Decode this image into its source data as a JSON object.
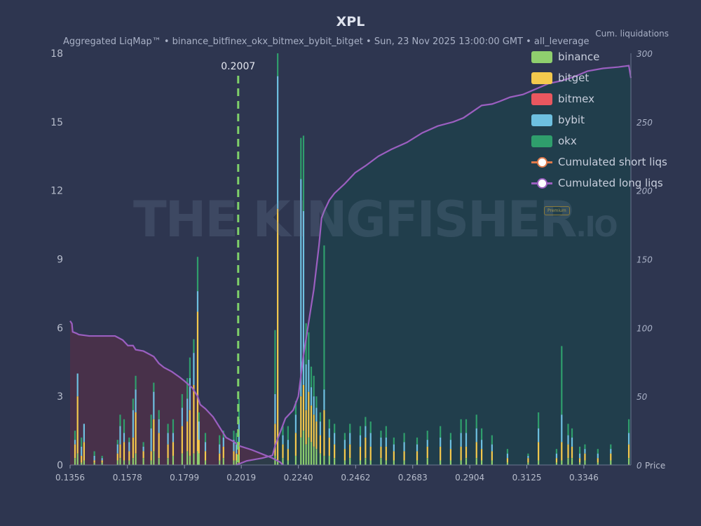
{
  "title": "XPL",
  "subtitle": "Aggregated LiqMap™  •  binance_bitfinex_okx_bitmex_bybit_bitget  •  Sun, 23 Nov 2025 13:00:00 GMT  •  all_leverage",
  "right_axis_title": "Cum. liquidations",
  "price_axis_label": "Price",
  "current_price_label": "0.2007",
  "watermark": {
    "main": "THE KINGFISHER",
    "suffix": ".IO",
    "badge": "Premium"
  },
  "legend": [
    {
      "label": "binance",
      "color": "#8fcf6e",
      "kind": "bar"
    },
    {
      "label": "bitget",
      "color": "#f4c94d",
      "kind": "bar"
    },
    {
      "label": "bitmex",
      "color": "#e8575f",
      "kind": "bar"
    },
    {
      "label": "bybit",
      "color": "#6ec0e0",
      "kind": "bar"
    },
    {
      "label": "okx",
      "color": "#2f9e6c",
      "kind": "bar"
    },
    {
      "label": "Cumulated short liqs",
      "color": "#e07a4a",
      "kind": "line"
    },
    {
      "label": "Cumulated long liqs",
      "color": "#9b5fc0",
      "kind": "line"
    }
  ],
  "chart_data": {
    "type": "bar",
    "x_ticks": [
      "0.1356",
      "0.1578",
      "0.1799",
      "0.2019",
      "0.2240",
      "0.2462",
      "0.2683",
      "0.2904",
      "0.3125",
      "0.3346"
    ],
    "x_range": [
      0.1356,
      0.3528
    ],
    "y_ticks": [
      "0",
      "3",
      "6",
      "9",
      "12",
      "15",
      "18"
    ],
    "ylim": [
      0,
      18
    ],
    "y2_ticks": [
      "0",
      "50",
      "100",
      "150",
      "200",
      "250",
      "300"
    ],
    "y2lim": [
      0,
      300
    ],
    "current_price": 0.2007,
    "bars": [
      {
        "x": 0.1375,
        "h": [
          0.3,
          0.6,
          0,
          0.2,
          0.4
        ]
      },
      {
        "x": 0.1385,
        "h": [
          0.5,
          2.5,
          0,
          1.0,
          0
        ]
      },
      {
        "x": 0.14,
        "h": [
          0.1,
          0.3,
          0,
          0.4,
          0.4
        ]
      },
      {
        "x": 0.141,
        "h": [
          0.2,
          0.8,
          0,
          0.8,
          0
        ]
      },
      {
        "x": 0.145,
        "h": [
          0.1,
          0.1,
          0,
          0.2,
          0.2
        ]
      },
      {
        "x": 0.148,
        "h": [
          0.1,
          0.1,
          0,
          0.1,
          0.1
        ]
      },
      {
        "x": 0.154,
        "h": [
          0.2,
          0.3,
          0,
          0.4,
          0.2
        ]
      },
      {
        "x": 0.155,
        "h": [
          0.3,
          0.6,
          0,
          0.8,
          0.5
        ]
      },
      {
        "x": 0.1565,
        "h": [
          0.2,
          0.8,
          0,
          0.4,
          0.6
        ]
      },
      {
        "x": 0.1585,
        "h": [
          0.2,
          0.4,
          0,
          0.4,
          0.2
        ]
      },
      {
        "x": 0.16,
        "h": [
          0.3,
          0.9,
          0,
          1.2,
          0.5
        ]
      },
      {
        "x": 0.161,
        "h": [
          0.5,
          1.8,
          0,
          1.0,
          0.6
        ]
      },
      {
        "x": 0.164,
        "h": [
          0.3,
          0.3,
          0,
          0.2,
          0.2
        ]
      },
      {
        "x": 0.167,
        "h": [
          0.2,
          0.4,
          0,
          1.0,
          0.6
        ]
      },
      {
        "x": 0.168,
        "h": [
          0.6,
          1.4,
          0,
          1.2,
          0.4
        ]
      },
      {
        "x": 0.17,
        "h": [
          0.3,
          1.1,
          0,
          0.6,
          0.4
        ]
      },
      {
        "x": 0.1735,
        "h": [
          0.3,
          0.6,
          0,
          0.5,
          0.4
        ]
      },
      {
        "x": 0.1755,
        "h": [
          0.4,
          0.6,
          0,
          0.4,
          0.6
        ]
      },
      {
        "x": 0.179,
        "h": [
          0.5,
          1.2,
          0,
          0.8,
          0.6
        ]
      },
      {
        "x": 0.181,
        "h": [
          0.6,
          1.3,
          0,
          1.0,
          0.9
        ]
      },
      {
        "x": 0.182,
        "h": [
          0.4,
          2.0,
          0,
          1.4,
          0.9
        ]
      },
      {
        "x": 0.1835,
        "h": [
          0.5,
          3.0,
          0,
          1.4,
          0.6
        ]
      },
      {
        "x": 0.185,
        "h": [
          0.6,
          6.1,
          0,
          0.9,
          1.5
        ]
      },
      {
        "x": 0.1855,
        "h": [
          0.5,
          0.6,
          0,
          0.8,
          0.4
        ]
      },
      {
        "x": 0.188,
        "h": [
          0.2,
          0.4,
          0,
          0.4,
          0.4
        ]
      },
      {
        "x": 0.1935,
        "h": [
          0.2,
          0.3,
          0,
          0.4,
          0.4
        ]
      },
      {
        "x": 0.195,
        "h": [
          0.3,
          0.5,
          0,
          0.4,
          0.3
        ]
      },
      {
        "x": 0.199,
        "h": [
          0.2,
          0.4,
          0,
          0.5,
          0.4
        ]
      },
      {
        "x": 0.2,
        "h": [
          0.2,
          0.3,
          0,
          0.4,
          0.5
        ]
      },
      {
        "x": 0.201,
        "h": [
          0.1,
          0.9,
          0,
          1.0,
          0.9
        ]
      },
      {
        "x": 0.215,
        "h": [
          0.4,
          1.4,
          0,
          1.3,
          2.8
        ]
      },
      {
        "x": 0.216,
        "h": [
          0.2,
          11.0,
          0,
          5.8,
          1.0
        ]
      },
      {
        "x": 0.218,
        "h": [
          0.3,
          0.6,
          0,
          0.4,
          0.4
        ]
      },
      {
        "x": 0.22,
        "h": [
          0.2,
          0.5,
          0,
          0.4,
          0.6
        ]
      },
      {
        "x": 0.223,
        "h": [
          0.4,
          1.0,
          0,
          0.8,
          0.6
        ]
      },
      {
        "x": 0.225,
        "h": [
          1.2,
          1.8,
          0,
          9.5,
          1.8
        ]
      },
      {
        "x": 0.226,
        "h": [
          1.5,
          2.0,
          0,
          7.6,
          3.3
        ]
      },
      {
        "x": 0.227,
        "h": [
          0.9,
          1.5,
          0,
          2.0,
          1.8
        ]
      },
      {
        "x": 0.228,
        "h": [
          1.2,
          2.0,
          0,
          1.4,
          1.2
        ]
      },
      {
        "x": 0.229,
        "h": [
          1.0,
          1.6,
          0,
          0.8,
          0.9
        ]
      },
      {
        "x": 0.23,
        "h": [
          0.8,
          1.4,
          0,
          0.8,
          0.9
        ]
      },
      {
        "x": 0.231,
        "h": [
          0.7,
          1.2,
          0,
          0.6,
          0.5
        ]
      },
      {
        "x": 0.2325,
        "h": [
          0.5,
          0.8,
          0,
          0.6,
          0.4
        ]
      },
      {
        "x": 0.234,
        "h": [
          0.4,
          2.0,
          0,
          0.9,
          6.3
        ]
      },
      {
        "x": 0.236,
        "h": [
          0.4,
          0.8,
          0,
          0.4,
          0.4
        ]
      },
      {
        "x": 0.238,
        "h": [
          0.3,
          0.6,
          0,
          0.5,
          0.4
        ]
      },
      {
        "x": 0.242,
        "h": [
          0.2,
          0.5,
          0,
          0.4,
          0.3
        ]
      },
      {
        "x": 0.244,
        "h": [
          0.3,
          0.6,
          0,
          0.5,
          0.4
        ]
      },
      {
        "x": 0.248,
        "h": [
          0.2,
          0.6,
          0,
          0.5,
          0.4
        ]
      },
      {
        "x": 0.25,
        "h": [
          0.3,
          0.9,
          0,
          0.5,
          0.4
        ]
      },
      {
        "x": 0.252,
        "h": [
          0.2,
          0.6,
          0,
          0.6,
          0.5
        ]
      },
      {
        "x": 0.256,
        "h": [
          0.3,
          0.5,
          0,
          0.4,
          0.3
        ]
      },
      {
        "x": 0.258,
        "h": [
          0.2,
          0.6,
          0,
          0.4,
          0.5
        ]
      },
      {
        "x": 0.261,
        "h": [
          0.2,
          0.4,
          0,
          0.3,
          0.3
        ]
      },
      {
        "x": 0.265,
        "h": [
          0.2,
          0.4,
          0,
          0.4,
          0.4
        ]
      },
      {
        "x": 0.27,
        "h": [
          0.2,
          0.4,
          0,
          0.3,
          0.3
        ]
      },
      {
        "x": 0.274,
        "h": [
          0.3,
          0.5,
          0,
          0.3,
          0.4
        ]
      },
      {
        "x": 0.279,
        "h": [
          0.2,
          0.6,
          0,
          0.4,
          0.5
        ]
      },
      {
        "x": 0.283,
        "h": [
          0.2,
          0.5,
          0,
          0.4,
          0.3
        ]
      },
      {
        "x": 0.287,
        "h": [
          0.2,
          0.6,
          0,
          0.6,
          0.6
        ]
      },
      {
        "x": 0.289,
        "h": [
          0.3,
          0.5,
          0,
          0.6,
          0.6
        ]
      },
      {
        "x": 0.293,
        "h": [
          0.3,
          0.7,
          0,
          0.6,
          0.6
        ]
      },
      {
        "x": 0.295,
        "h": [
          0.2,
          0.5,
          0,
          0.4,
          0.5
        ]
      },
      {
        "x": 0.299,
        "h": [
          0.2,
          0.4,
          0,
          0.3,
          0.4
        ]
      },
      {
        "x": 0.305,
        "h": [
          0.1,
          0.2,
          0,
          0.2,
          0.2
        ]
      },
      {
        "x": 0.313,
        "h": [
          0.1,
          0.2,
          0,
          0.1,
          0.1
        ]
      },
      {
        "x": 0.317,
        "h": [
          0.2,
          0.8,
          0,
          0.6,
          0.7
        ]
      },
      {
        "x": 0.324,
        "h": [
          0.1,
          0.2,
          0,
          0.2,
          0.2
        ]
      },
      {
        "x": 0.326,
        "h": [
          0.2,
          0.8,
          0,
          1.2,
          3.0
        ]
      },
      {
        "x": 0.3285,
        "h": [
          0.3,
          0.6,
          0,
          0.4,
          0.5
        ]
      },
      {
        "x": 0.33,
        "h": [
          0.3,
          0.5,
          0,
          0.4,
          0.4
        ]
      },
      {
        "x": 0.333,
        "h": [
          0.1,
          0.2,
          0,
          0.2,
          0.3
        ]
      },
      {
        "x": 0.335,
        "h": [
          0.2,
          0.3,
          0,
          0.2,
          0.2
        ]
      },
      {
        "x": 0.34,
        "h": [
          0.1,
          0.2,
          0,
          0.2,
          0.2
        ]
      },
      {
        "x": 0.345,
        "h": [
          0.2,
          0.3,
          0,
          0.2,
          0.2
        ]
      },
      {
        "x": 0.352,
        "h": [
          0.3,
          0.6,
          0,
          0.5,
          0.6
        ]
      }
    ],
    "short_cum": [
      [
        0.1356,
        105
      ],
      [
        0.1363,
        103
      ],
      [
        0.1366,
        97
      ],
      [
        0.138,
        96
      ],
      [
        0.139,
        95
      ],
      [
        0.143,
        94
      ],
      [
        0.153,
        94
      ],
      [
        0.154,
        93
      ],
      [
        0.156,
        91
      ],
      [
        0.157,
        89
      ],
      [
        0.158,
        87
      ],
      [
        0.16,
        87
      ],
      [
        0.161,
        84
      ],
      [
        0.164,
        83
      ],
      [
        0.166,
        81
      ],
      [
        0.168,
        79
      ],
      [
        0.17,
        74
      ],
      [
        0.172,
        71
      ],
      [
        0.175,
        68
      ],
      [
        0.178,
        64
      ],
      [
        0.18,
        61
      ],
      [
        0.183,
        56
      ],
      [
        0.185,
        50
      ],
      [
        0.186,
        44
      ],
      [
        0.188,
        41
      ],
      [
        0.191,
        35
      ],
      [
        0.194,
        26
      ],
      [
        0.196,
        20
      ],
      [
        0.199,
        17
      ],
      [
        0.201,
        14
      ],
      [
        0.206,
        11
      ],
      [
        0.214,
        5
      ],
      [
        0.217,
        2
      ],
      [
        0.218,
        0
      ]
    ],
    "long_cum": [
      [
        0.2,
        0
      ],
      [
        0.204,
        3
      ],
      [
        0.21,
        5
      ],
      [
        0.214,
        7
      ],
      [
        0.215,
        14
      ],
      [
        0.217,
        24
      ],
      [
        0.219,
        34
      ],
      [
        0.222,
        40
      ],
      [
        0.224,
        50
      ],
      [
        0.226,
        80
      ],
      [
        0.228,
        104
      ],
      [
        0.23,
        128
      ],
      [
        0.232,
        160
      ],
      [
        0.233,
        180
      ],
      [
        0.234,
        185
      ],
      [
        0.236,
        193
      ],
      [
        0.238,
        198
      ],
      [
        0.242,
        205
      ],
      [
        0.246,
        213
      ],
      [
        0.25,
        218
      ],
      [
        0.255,
        225
      ],
      [
        0.26,
        230
      ],
      [
        0.266,
        235
      ],
      [
        0.272,
        242
      ],
      [
        0.278,
        247
      ],
      [
        0.284,
        250
      ],
      [
        0.288,
        253
      ],
      [
        0.295,
        262
      ],
      [
        0.299,
        263
      ],
      [
        0.302,
        265
      ],
      [
        0.306,
        268
      ],
      [
        0.311,
        270
      ],
      [
        0.316,
        274
      ],
      [
        0.321,
        278
      ],
      [
        0.326,
        280
      ],
      [
        0.331,
        283
      ],
      [
        0.336,
        287
      ],
      [
        0.342,
        289
      ],
      [
        0.348,
        290
      ],
      [
        0.352,
        291
      ],
      [
        0.3528,
        282
      ]
    ]
  }
}
